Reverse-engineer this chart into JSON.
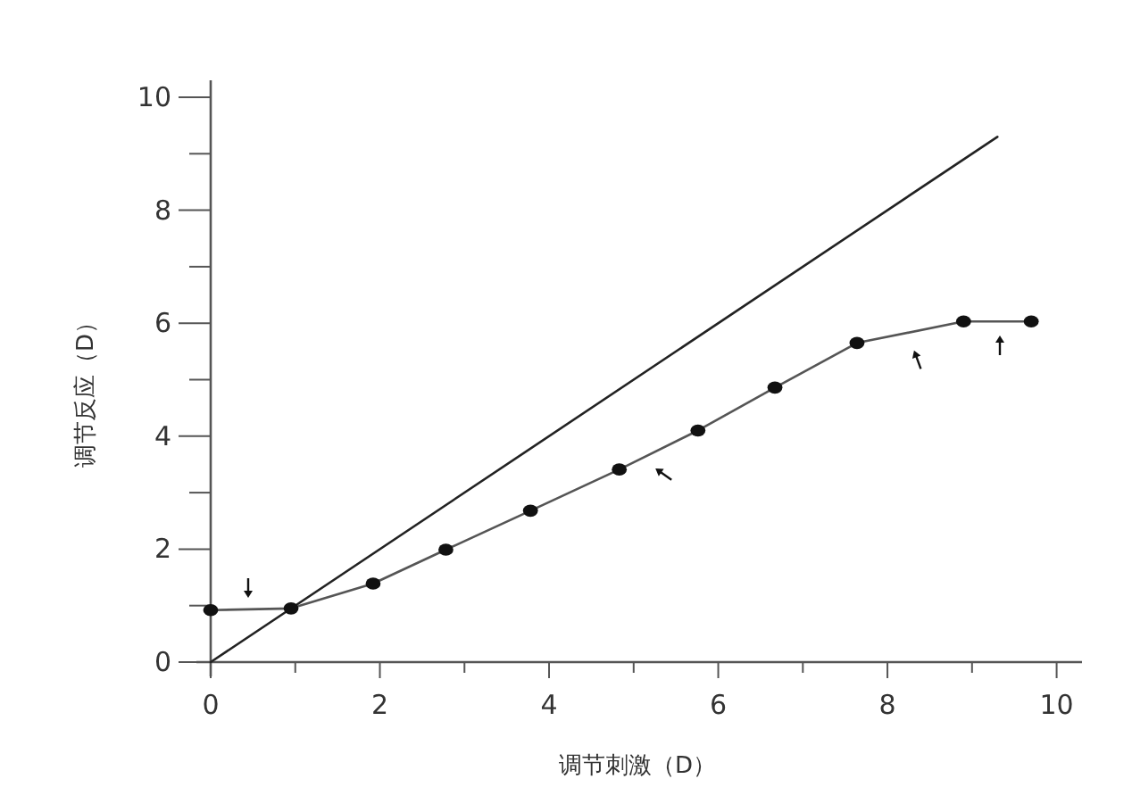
{
  "chart_data": {
    "type": "line",
    "xlabel": "调节刺激（D）",
    "ylabel": "调节反应（D）",
    "xlim": [
      0,
      10.3
    ],
    "ylim": [
      0,
      10.3
    ],
    "xticks": [
      0,
      {
        "value": 1,
        "label": null
      },
      2,
      {
        "value": 3,
        "label": null
      },
      4,
      {
        "value": 5,
        "label": null
      },
      6,
      {
        "value": 7,
        "label": null
      },
      8,
      {
        "value": 9,
        "label": null
      },
      10
    ],
    "yticks": [
      0,
      {
        "value": 1,
        "label": null
      },
      2,
      {
        "value": 3,
        "label": null
      },
      4,
      {
        "value": 5,
        "label": null
      },
      6,
      {
        "value": 7,
        "label": null
      },
      8,
      {
        "value": 9,
        "label": null
      },
      10
    ],
    "grid": false,
    "series": [
      {
        "color": "#222222",
        "marker": "none",
        "x": [
          0,
          9.3
        ],
        "values": [
          0,
          9.3
        ]
      },
      {
        "color": "#555555",
        "marker": "circle",
        "x": [
          0,
          0.95,
          1.92,
          2.78,
          3.78,
          4.83,
          5.76,
          6.67,
          7.64,
          8.9,
          9.7
        ],
        "values": [
          0.92,
          0.95,
          1.39,
          1.99,
          2.68,
          3.41,
          4.1,
          4.86,
          5.65,
          6.03,
          6.03
        ]
      }
    ]
  }
}
